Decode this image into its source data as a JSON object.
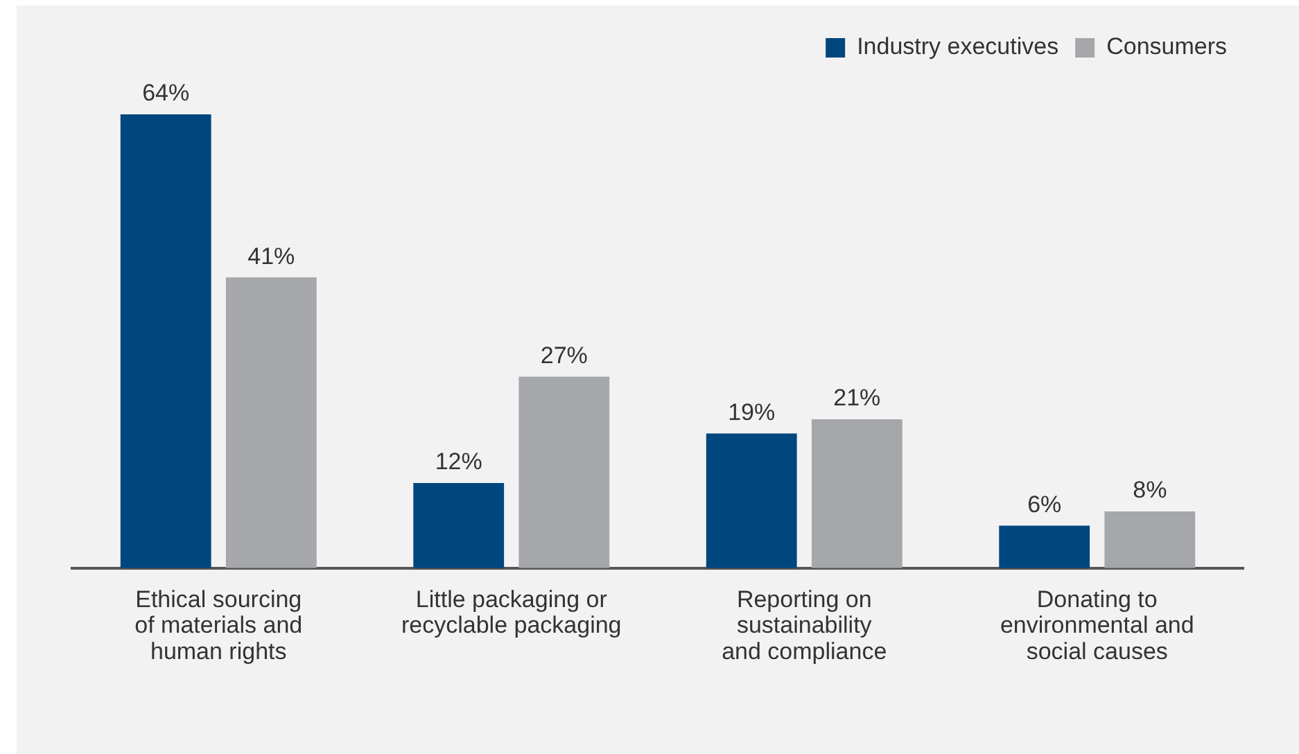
{
  "chart_data": {
    "type": "bar",
    "categories": [
      "Ethical sourcing\nof materials and\nhuman rights",
      "Little packaging or\nrecyclable packaging",
      "Reporting on\nsustainability\nand compliance",
      "Donating to\nenvironmental and\nsocial causes"
    ],
    "series": [
      {
        "name": "Industry executives",
        "color": "#00467f",
        "values": [
          64,
          12,
          19,
          6
        ],
        "value_labels": [
          "64%",
          "12%",
          "19%",
          "6%"
        ]
      },
      {
        "name": "Consumers",
        "color": "#a5a7aa",
        "values": [
          41,
          27,
          21,
          8
        ],
        "value_labels": [
          "41%",
          "27%",
          "21%",
          "8%"
        ]
      }
    ],
    "legend": "top right",
    "grid": false
  }
}
